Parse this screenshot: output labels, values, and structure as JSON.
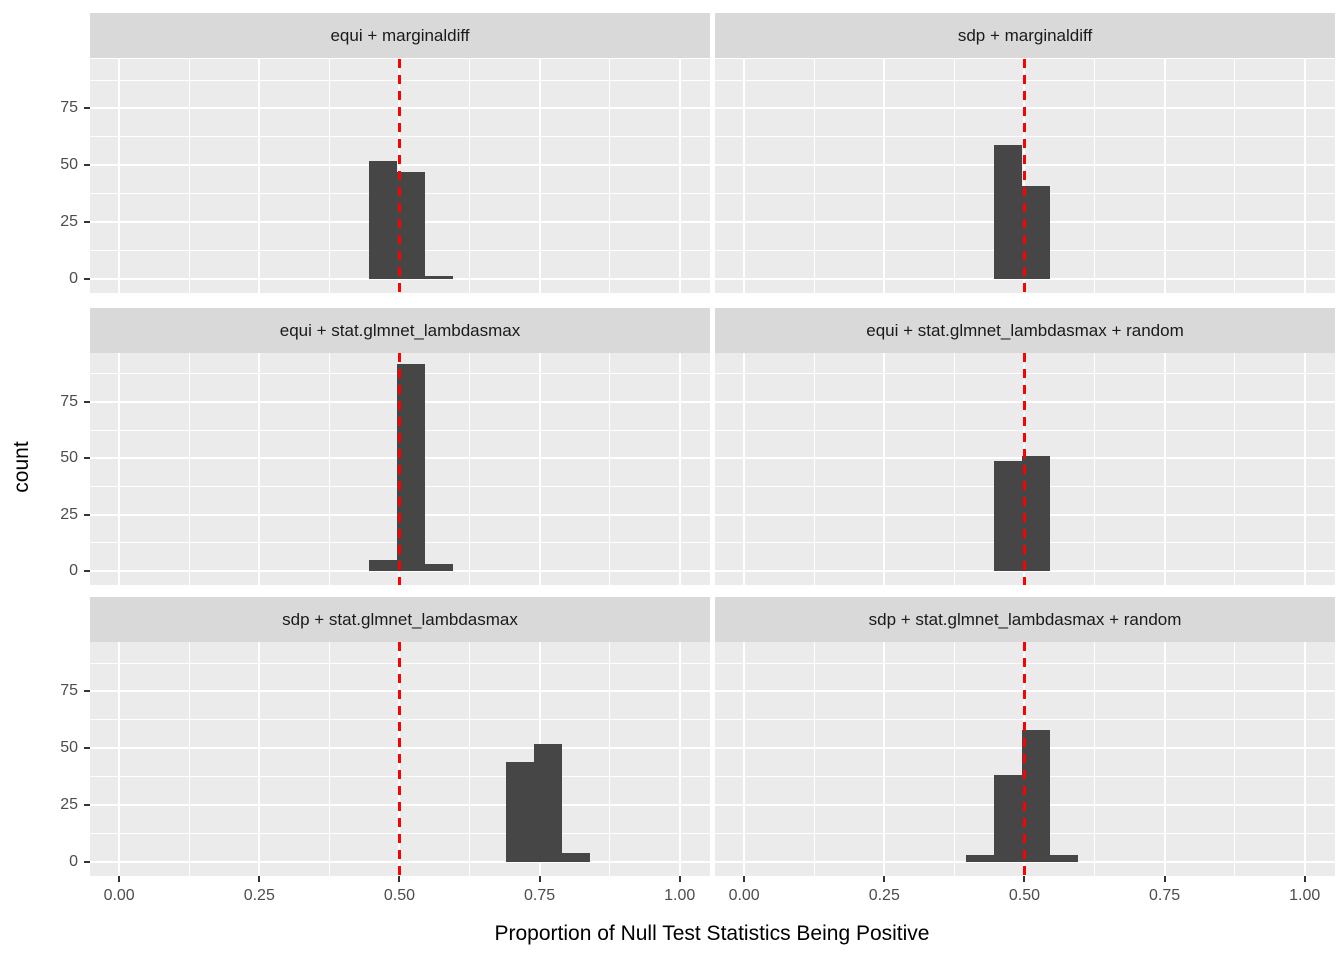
{
  "chart_data": {
    "type": "bar",
    "subtype": "faceted-histogram",
    "xlabel": "Proportion of Null Test Statistics Being Positive",
    "ylabel": "count",
    "x_ticks": [
      0,
      0.25,
      0.5,
      0.75,
      1
    ],
    "x_tick_labels": [
      "0.00",
      "0.25",
      "0.50",
      "0.75",
      "1.00"
    ],
    "y_ticks": [
      0,
      25,
      50,
      75
    ],
    "y_tick_labels": [
      "0",
      "25",
      "50",
      "75"
    ],
    "x_minor_ticks": [
      0.125,
      0.375,
      0.625,
      0.875
    ],
    "y_minor_ticks": [
      12.5,
      37.5,
      62.5,
      87.5
    ],
    "x_domain": [
      -0.052,
      1.054
    ],
    "y_domain": [
      -6.3,
      96.8
    ],
    "grid": {
      "rows": 3,
      "cols": 2,
      "order": "row-major",
      "gridlines": "on",
      "legend": "none"
    },
    "binwidth": 0.05,
    "vline_x": 0.5,
    "vline_style": "dashed",
    "panels": [
      {
        "title": "equi + marginaldiff",
        "bars": [
          {
            "x0": 0.445,
            "x1": 0.495,
            "count": 52
          },
          {
            "x0": 0.495,
            "x1": 0.545,
            "count": 47
          },
          {
            "x0": 0.545,
            "x1": 0.595,
            "count": 1
          }
        ]
      },
      {
        "title": "sdp + marginaldiff",
        "bars": [
          {
            "x0": 0.445,
            "x1": 0.495,
            "count": 59
          },
          {
            "x0": 0.495,
            "x1": 0.545,
            "count": 41
          }
        ]
      },
      {
        "title": "equi + stat.glmnet_lambdasmax",
        "bars": [
          {
            "x0": 0.445,
            "x1": 0.495,
            "count": 5
          },
          {
            "x0": 0.495,
            "x1": 0.545,
            "count": 92
          },
          {
            "x0": 0.545,
            "x1": 0.595,
            "count": 3
          }
        ]
      },
      {
        "title": "equi + stat.glmnet_lambdasmax + random",
        "bars": [
          {
            "x0": 0.445,
            "x1": 0.495,
            "count": 49
          },
          {
            "x0": 0.495,
            "x1": 0.545,
            "count": 51
          }
        ]
      },
      {
        "title": "sdp + stat.glmnet_lambdasmax",
        "bars": [
          {
            "x0": 0.69,
            "x1": 0.74,
            "count": 44
          },
          {
            "x0": 0.74,
            "x1": 0.79,
            "count": 52
          },
          {
            "x0": 0.79,
            "x1": 0.84,
            "count": 4
          }
        ]
      },
      {
        "title": "sdp + stat.glmnet_lambdasmax + random",
        "bars": [
          {
            "x0": 0.395,
            "x1": 0.445,
            "count": 3
          },
          {
            "x0": 0.445,
            "x1": 0.495,
            "count": 38
          },
          {
            "x0": 0.495,
            "x1": 0.545,
            "count": 58
          },
          {
            "x0": 0.545,
            "x1": 0.595,
            "count": 3
          }
        ]
      }
    ],
    "colors": {
      "bar": "#464646",
      "panel_bg": "#EBEBEB",
      "strip_bg": "#D9D9D9",
      "grid": "#FFFFFF",
      "vline": "#FF0000",
      "axis_text": "#4D4D4D",
      "strip_text": "#1A1A1A",
      "title_text": "#000000",
      "tick_mark": "#333333"
    }
  }
}
